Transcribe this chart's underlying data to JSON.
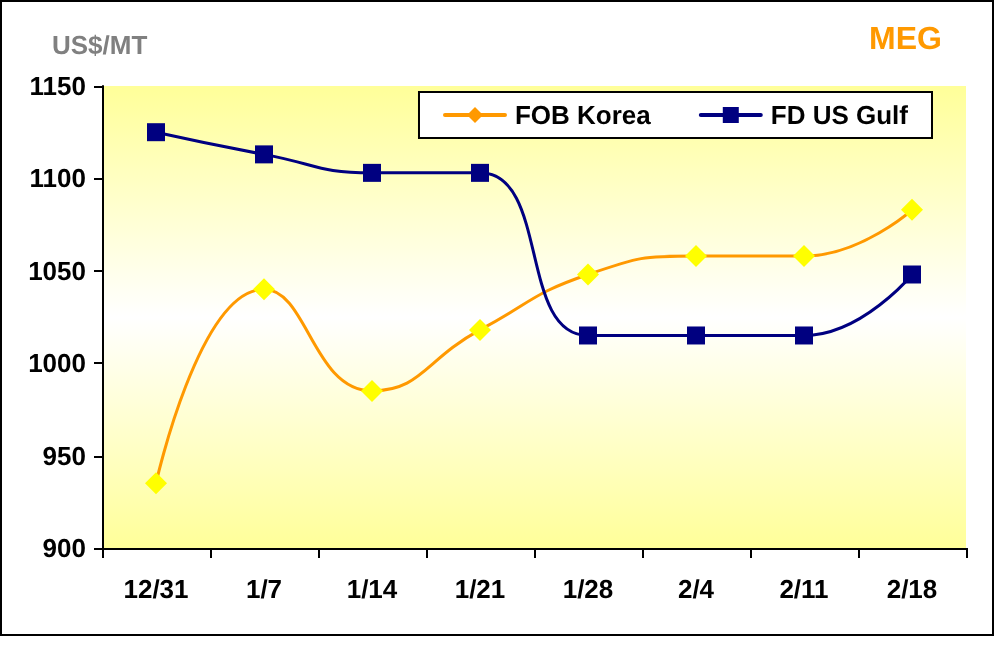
{
  "chart_data": {
    "type": "line",
    "title": "MEG",
    "ylabel": "US$/MT",
    "categories": [
      "12/31",
      "1/7",
      "1/14",
      "1/21",
      "1/28",
      "2/4",
      "2/11",
      "2/18"
    ],
    "series": [
      {
        "name": "FOB Korea",
        "color": "#ff9900",
        "colors": [
          "#ffff00",
          "#ffff00",
          "#ffff00",
          "#ffff00",
          "#ffff00",
          "#ffff00",
          "#ffff00",
          "#ffff00"
        ],
        "marker": "diamond",
        "values": [
          935,
          1040,
          985,
          1018,
          1048,
          1058,
          1058,
          1083
        ]
      },
      {
        "name": "FD US Gulf",
        "color": "#000080",
        "marker": "square",
        "values": [
          1125,
          1113,
          1103,
          1103,
          1015,
          1015,
          1015,
          1048
        ]
      }
    ],
    "ylim": [
      900,
      1150
    ],
    "yticks": [
      900,
      950,
      1000,
      1050,
      1100,
      1150
    ],
    "grid": false,
    "legend": "top right"
  }
}
